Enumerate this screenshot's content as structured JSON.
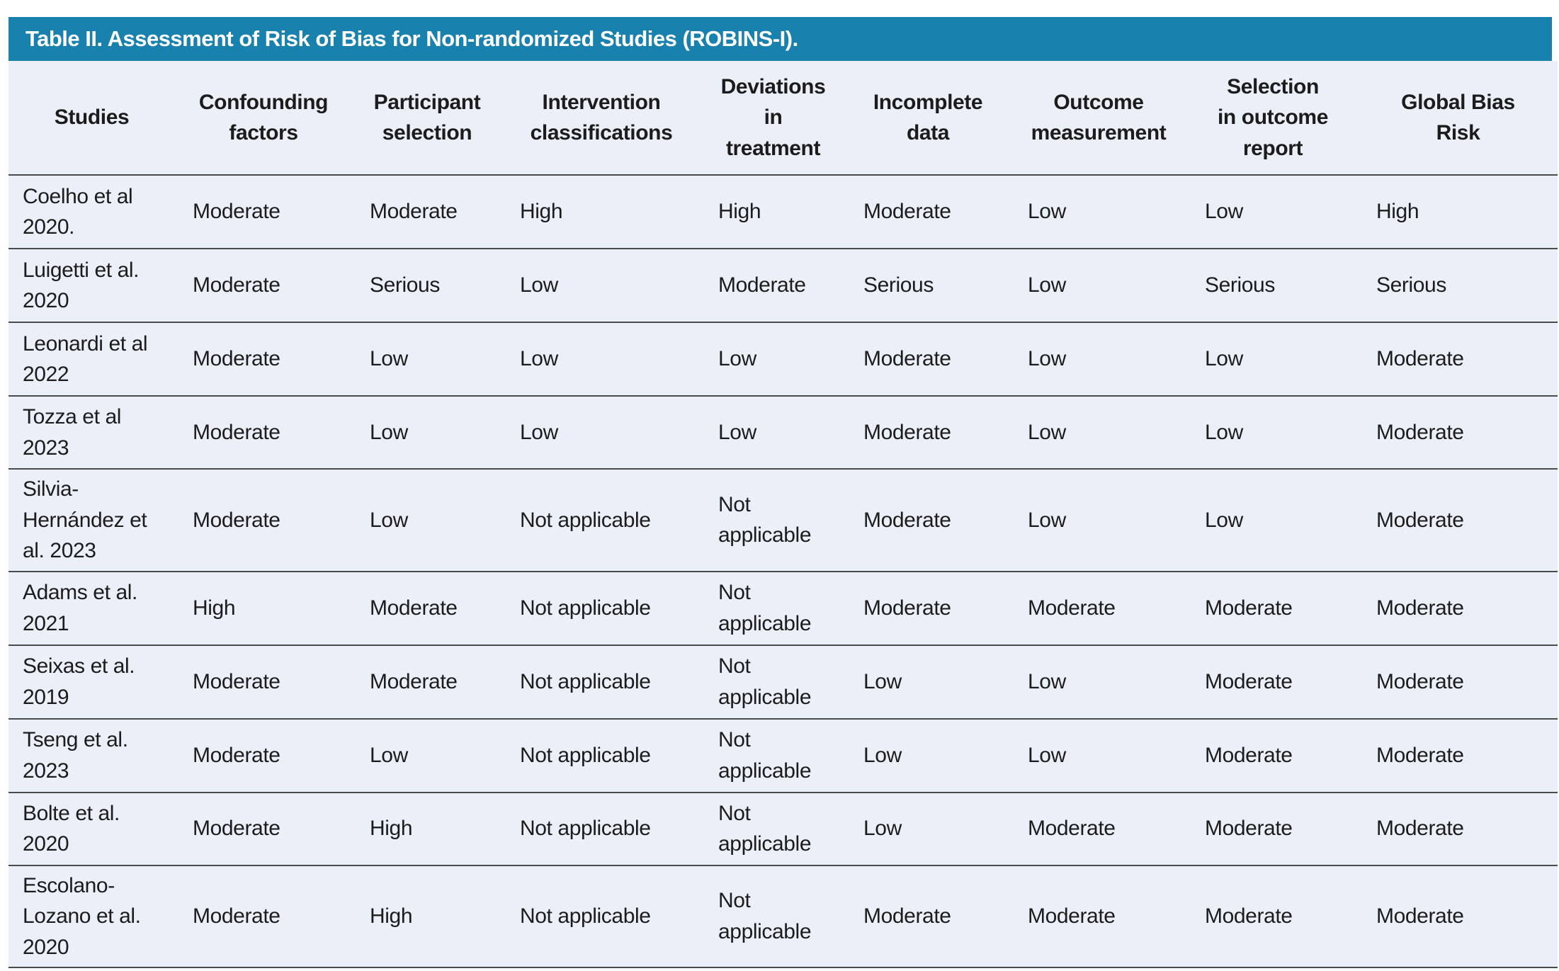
{
  "title": "Table II. Assessment of Risk of Bias for Non-randomized Studies (ROBINS-I).",
  "colors": {
    "title_bar": "#1981ad",
    "title_text": "#ffffff",
    "table_bg": "#ebeff7",
    "border": "#4a4a4a",
    "text": "#1c1c1c"
  },
  "table": {
    "columns": [
      "Studies",
      "Confounding\nfactors",
      "Participant\nselection",
      "Intervention\nclassifications",
      "Deviations\nin\ntreatment",
      "Incomplete\ndata",
      "Outcome\nmeasurement",
      "Selection\nin outcome\nreport",
      "Global Bias\nRisk"
    ],
    "rows": [
      {
        "study": "Coelho et al\n2020.",
        "values": [
          "Moderate",
          "Moderate",
          "High",
          "High",
          "Moderate",
          "Low",
          "Low",
          "High"
        ]
      },
      {
        "study": "Luigetti et al.\n2020",
        "values": [
          "Moderate",
          "Serious",
          "Low",
          "Moderate",
          "Serious",
          "Low",
          "Serious",
          "Serious"
        ]
      },
      {
        "study": "Leonardi et al\n2022",
        "values": [
          "Moderate",
          "Low",
          "Low",
          "Low",
          "Moderate",
          "Low",
          "Low",
          "Moderate"
        ]
      },
      {
        "study": "Tozza et al\n2023",
        "values": [
          "Moderate",
          "Low",
          "Low",
          "Low",
          "Moderate",
          "Low",
          "Low",
          "Moderate"
        ]
      },
      {
        "study": "Silvia-\nHernández et\nal. 2023",
        "values": [
          "Moderate",
          "Low",
          "Not applicable",
          "Not applicable",
          "Moderate",
          "Low",
          "Low",
          "Moderate"
        ]
      },
      {
        "study": "Adams et al.\n2021",
        "values": [
          "High",
          "Moderate",
          "Not applicable",
          "Not applicable",
          "Moderate",
          "Moderate",
          "Moderate",
          "Moderate"
        ]
      },
      {
        "study": "Seixas et al.\n2019",
        "values": [
          "Moderate",
          "Moderate",
          "Not applicable",
          "Not applicable",
          "Low",
          "Low",
          "Moderate",
          "Moderate"
        ]
      },
      {
        "study": "Tseng et al.\n2023",
        "values": [
          "Moderate",
          "Low",
          "Not applicable",
          "Not applicable",
          "Low",
          "Low",
          "Moderate",
          "Moderate"
        ]
      },
      {
        "study": "Bolte et al.\n2020",
        "values": [
          "Moderate",
          "High",
          "Not applicable",
          "Not applicable",
          "Low",
          "Moderate",
          "Moderate",
          "Moderate"
        ]
      },
      {
        "study": "Escolano-\nLozano et al.\n2020",
        "values": [
          "Moderate",
          "High",
          "Not applicable",
          "Not applicable",
          "Moderate",
          "Moderate",
          "Moderate",
          "Moderate"
        ]
      }
    ]
  }
}
